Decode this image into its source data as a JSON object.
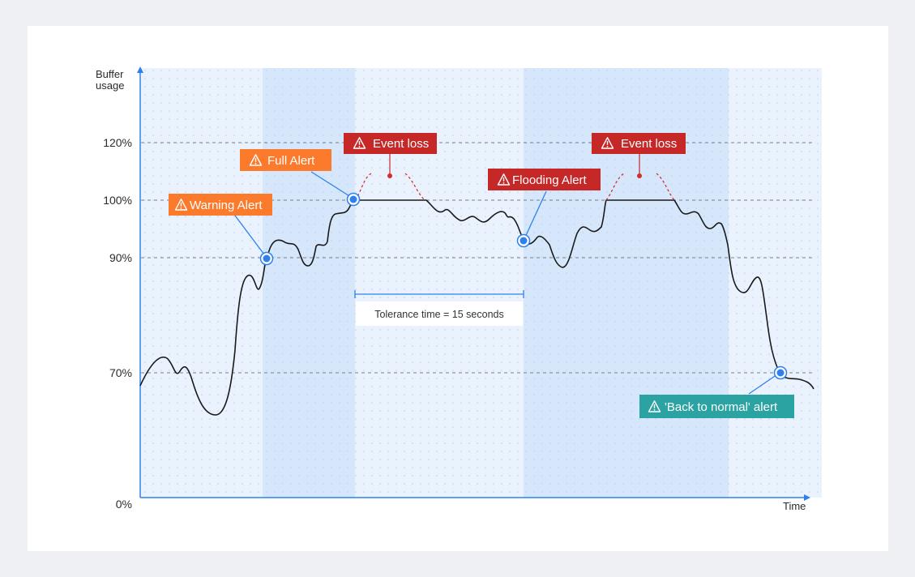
{
  "axes": {
    "y_title_line1": "Buffer",
    "y_title_line2": "usage",
    "x_title": "Time",
    "ticks": [
      "120%",
      "100%",
      "90%",
      "70%",
      "0%"
    ]
  },
  "alerts": {
    "warning": "Warning Alert",
    "full": "Full Alert",
    "event_loss_1": "Event loss",
    "event_loss_2": "Event loss",
    "flooding": "Flooding Alert",
    "back_to_normal": "'Back to normal' alert"
  },
  "tolerance": {
    "label": "Tolerance time = 15 seconds"
  },
  "colors": {
    "orange": "#fb7a2c",
    "red": "#c62828",
    "teal": "#2ba3a3",
    "blue": "#2f80ed",
    "band_light": "#eaf3fd",
    "band_dark": "#d6e7fc"
  },
  "icons": {
    "warning": "warning-triangle-icon"
  }
}
